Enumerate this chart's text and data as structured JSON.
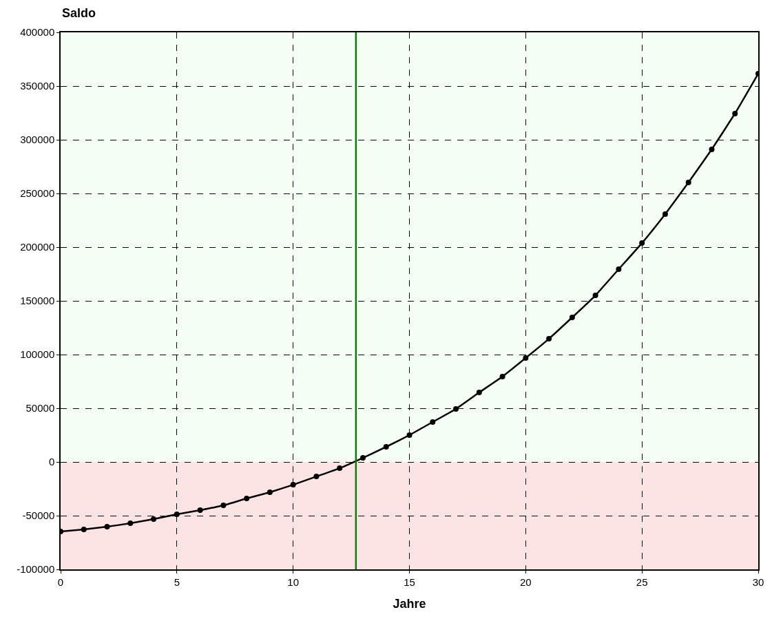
{
  "chart_data": {
    "type": "line",
    "xlabel": "Jahre",
    "ylabel": "Saldo",
    "x": [
      0,
      1,
      2,
      3,
      4,
      5,
      6,
      7,
      8,
      9,
      10,
      11,
      12,
      13,
      14,
      15,
      16,
      17,
      18,
      19,
      20,
      21,
      22,
      23,
      24,
      25,
      26,
      27,
      28,
      29,
      30
    ],
    "series": [
      {
        "color": "#000000",
        "values": [
          -64700,
          -62800,
          -60300,
          -57100,
          -53200,
          -48700,
          -44900,
          -40400,
          -34000,
          -28200,
          -21200,
          -13500,
          -5800,
          3800,
          14100,
          25000,
          37200,
          49400,
          64700,
          79500,
          96800,
          114700,
          134600,
          155100,
          179500,
          203800,
          230800,
          260300,
          291000,
          324400,
          361500
        ]
      }
    ],
    "marker": "circle",
    "line_style": "solid",
    "xlim": [
      0,
      30
    ],
    "xticks": [
      0,
      5,
      10,
      15,
      20,
      25,
      30
    ],
    "ylim": [
      -100000,
      400000
    ],
    "yticks": [
      -100000,
      -50000,
      0,
      50000,
      100000,
      150000,
      200000,
      250000,
      300000,
      350000,
      400000
    ],
    "grid": true,
    "ref_lines": [
      {
        "axis": "x",
        "value": 12.7,
        "color": "#008000"
      }
    ],
    "bands": [
      {
        "axis": "y",
        "from": 0,
        "to": 400000,
        "color": "#f5fff5"
      },
      {
        "axis": "y",
        "from": -100000,
        "to": 0,
        "color": "#fde4e4"
      }
    ]
  }
}
